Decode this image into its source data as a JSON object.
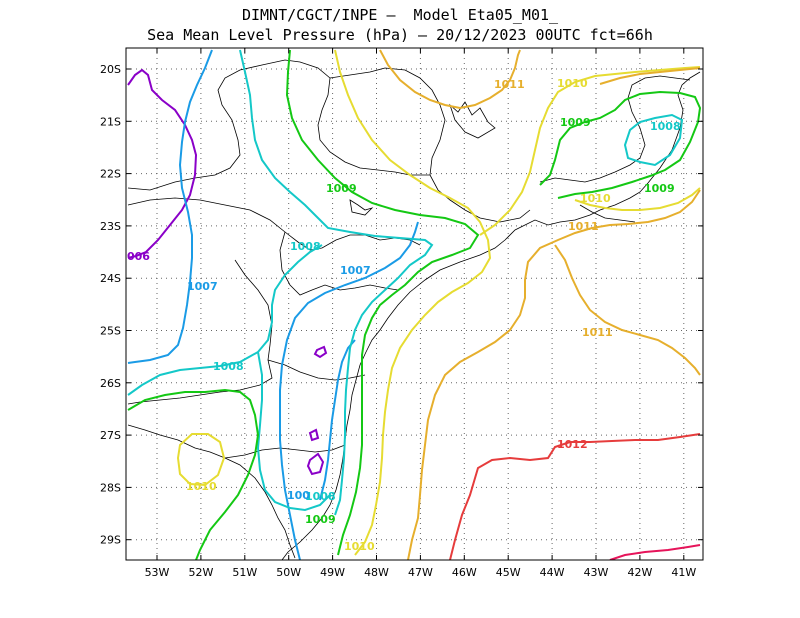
{
  "title": {
    "line1": "DIMNT/CGCT/INPE —  Model Eta05_M01_",
    "line2": "Sea Mean Level Pressure (hPa) — 20/12/2023 00UTC fct=66h"
  },
  "axes": {
    "lat_labels": [
      "20S",
      "21S",
      "22S",
      "23S",
      "24S",
      "25S",
      "26S",
      "27S",
      "28S",
      "29S"
    ],
    "lon_labels": [
      "53W",
      "52W",
      "51W",
      "50W",
      "49W",
      "48W",
      "47W",
      "46W",
      "45W",
      "44W",
      "43W",
      "42W",
      "41W"
    ]
  },
  "colors": {
    "c1006": "#8a00c8",
    "c1007": "#1a9be6",
    "c1008": "#14c8c8",
    "c1009": "#14c814",
    "c1010": "#e6dc32",
    "c1011": "#e6af2d",
    "c1012": "#e63c3c",
    "c1013": "#e6145a",
    "coast": "#000000",
    "grid": "#555555"
  },
  "contour_labels": [
    {
      "id": "l1006",
      "text": "006",
      "color": "c1006"
    },
    {
      "id": "l1007a",
      "text": "1007",
      "color": "c1007"
    },
    {
      "id": "l1007b",
      "text": "1007",
      "color": "c1007"
    },
    {
      "id": "l1008a",
      "text": "1008",
      "color": "c1008"
    },
    {
      "id": "l1008b",
      "text": "1008",
      "color": "c1008"
    },
    {
      "id": "l1008c",
      "text": "1008",
      "color": "c1008"
    },
    {
      "id": "l1008d",
      "text": "1008",
      "color": "c1008"
    },
    {
      "id": "l100x",
      "text": "100",
      "color": "c1007"
    },
    {
      "id": "l1009a",
      "text": "1009",
      "color": "c1009"
    },
    {
      "id": "l1009b",
      "text": "1009",
      "color": "c1009"
    },
    {
      "id": "l1009c",
      "text": "1009",
      "color": "c1009"
    },
    {
      "id": "l1009d",
      "text": "1009",
      "color": "c1009"
    },
    {
      "id": "l1010a",
      "text": "1010",
      "color": "c1010"
    },
    {
      "id": "l1010b",
      "text": "1010",
      "color": "c1010"
    },
    {
      "id": "l1010c",
      "text": "1010",
      "color": "c1010"
    },
    {
      "id": "l1010d",
      "text": "1010",
      "color": "c1010"
    },
    {
      "id": "l1011a",
      "text": "1011",
      "color": "c1011"
    },
    {
      "id": "l1011b",
      "text": "1011",
      "color": "c1011"
    },
    {
      "id": "l1011c",
      "text": "1011",
      "color": "c1011"
    },
    {
      "id": "l1012",
      "text": "1012",
      "color": "c1012"
    }
  ]
}
